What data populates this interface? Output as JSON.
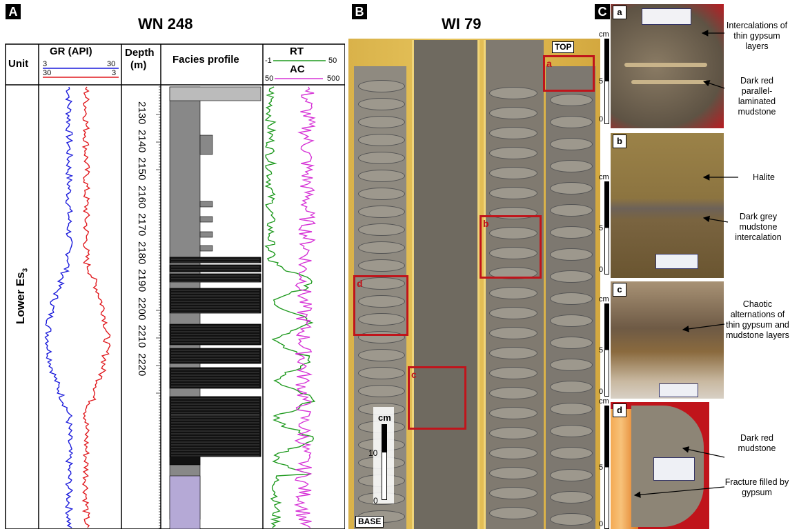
{
  "panelA": {
    "letter": "A",
    "title": "WN 248",
    "headers": {
      "unit": "Unit",
      "gr": "GR (API)",
      "depth_line1": "Depth",
      "depth_line2": "(m)",
      "facies": "Facies profile",
      "rt": "RT",
      "ac": "AC"
    },
    "gr_scale": {
      "blue_min": "3",
      "blue_max": "30",
      "red_min": "30",
      "red_max": "3"
    },
    "rt_scale": {
      "min": "-1",
      "max": "50"
    },
    "ac_scale": {
      "min": "50",
      "max": "500"
    },
    "unit_label": "Lower Es",
    "unit_sub": "3",
    "depths": [
      "2130",
      "2140",
      "2150",
      "2160",
      "2170",
      "2180",
      "2190",
      "2200",
      "2210",
      "2220"
    ],
    "colors": {
      "gr_blue": "#1a1adb",
      "gr_red": "#e0191e",
      "rt": "#1f9a1f",
      "ac": "#d633d6",
      "halite": "#888888",
      "mudstone": "#111111",
      "purple": "#b5a9d6"
    }
  },
  "panelB": {
    "letter": "B",
    "title": "WI 79",
    "top_label": "TOP",
    "base_label": "BASE",
    "scale_unit": "cm",
    "scale_ticks": [
      "10",
      "0"
    ],
    "boxes": [
      "a",
      "b",
      "c",
      "d"
    ]
  },
  "panelC": {
    "letter": "C",
    "scale_unit": "cm",
    "scale_ticks": [
      "5",
      "0"
    ],
    "photos": [
      {
        "label": "a",
        "annotations": [
          "Intercalations of thin gypsum layers",
          "Dark red parallel-laminated mudstone"
        ]
      },
      {
        "label": "b",
        "annotations": [
          "Halite",
          "Dark grey mudstone intercalation"
        ]
      },
      {
        "label": "c",
        "annotations": [
          "Chaotic alternations of thin gypsum and mudstone layers"
        ]
      },
      {
        "label": "d",
        "annotations": [
          "Dark red mudstone",
          "Fracture filled by gypsum"
        ]
      }
    ]
  }
}
